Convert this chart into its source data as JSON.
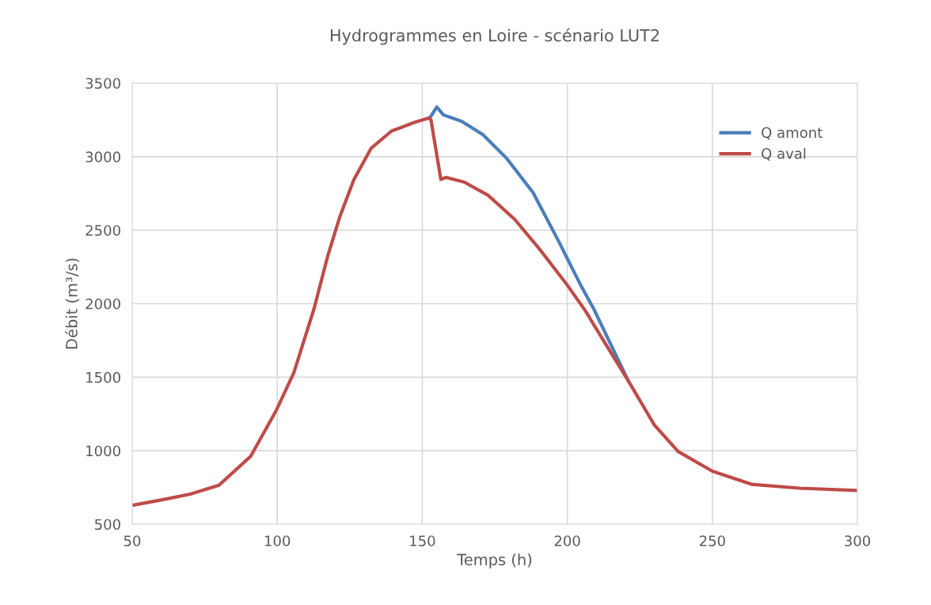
{
  "chart_data": {
    "type": "line",
    "title": "Hydrogrammes en Loire - scénario LUT2",
    "xlabel": "Temps (h)",
    "ylabel": "Débit (m³/s)",
    "xlim": [
      50,
      300
    ],
    "xticks": [
      50,
      100,
      150,
      200,
      250,
      300
    ],
    "ylim": [
      500,
      3500
    ],
    "yticks": [
      500,
      1000,
      1500,
      2000,
      2500,
      3000,
      3500
    ],
    "grid": true,
    "legend": "top right",
    "marker": "none",
    "line_style": "solid",
    "series": [
      {
        "name": "Q amont",
        "color": "#4a7ebb",
        "x": [
          152.3,
          152.7,
          155,
          157.3,
          163.6,
          170.9,
          179.1,
          188.2,
          197.3,
          200,
          204.6,
          209.1,
          220.9
        ],
        "values": [
          3263,
          3267,
          3338,
          3284,
          3240,
          3150,
          2988,
          2755,
          2414,
          2306,
          2127,
          1965,
          1480
        ]
      },
      {
        "name": "Q aval",
        "color": "#be4b48",
        "x": [
          50,
          60,
          70,
          79.9,
          90.8,
          99.7,
          105.7,
          112.6,
          117.5,
          121.5,
          126.4,
          132.4,
          139.4,
          147.3,
          152.3,
          153,
          156.4,
          158.2,
          164.5,
          172.7,
          181.8,
          190.9,
          200,
          206.4,
          209.1,
          220.9,
          230,
          238.2,
          250,
          263.7,
          280,
          300
        ],
        "values": [
          629,
          665,
          705,
          765,
          961,
          1276,
          1529,
          1960,
          2331,
          2587,
          2843,
          3058,
          3174,
          3233,
          3263,
          3250,
          2845,
          2859,
          2827,
          2737,
          2575,
          2360,
          2126,
          1947,
          1857,
          1480,
          1175,
          995,
          861,
          771,
          745,
          730
        ]
      }
    ]
  }
}
